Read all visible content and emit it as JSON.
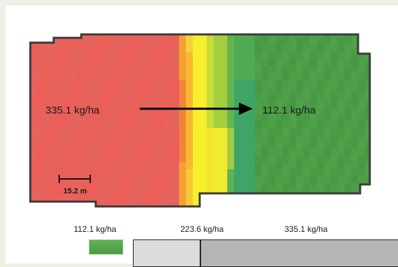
{
  "map": {
    "start_rate_label": "335.1 kg/ha",
    "end_rate_label": "112.1 kg/ha",
    "scale_bar_label": "15.2 m",
    "colors": {
      "high_rate": "#ed5d59",
      "mid_rate": "#f6ea2a",
      "low_rate": "#4fa04a",
      "outline": "#3a3a3a",
      "arrow": "#000000"
    }
  },
  "legend": {
    "low_label": "112.1 kg/ha",
    "mid_label": "223.6 kg/ha",
    "high_label": "335.1 kg/ha"
  }
}
